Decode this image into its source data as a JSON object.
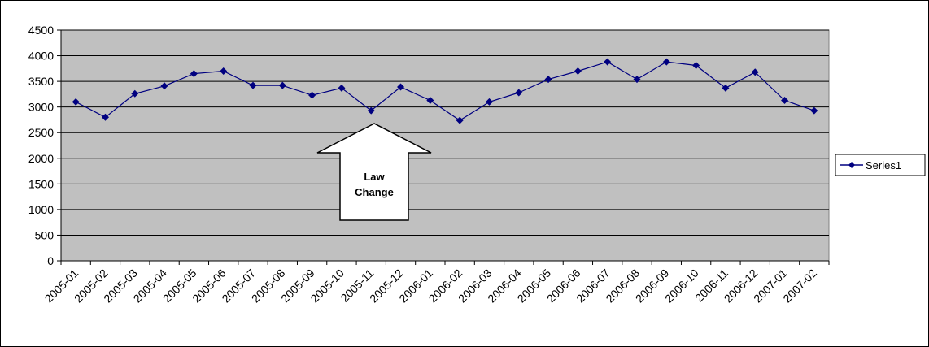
{
  "chart_data": {
    "type": "line",
    "categories": [
      "2005-01",
      "2005-02",
      "2005-03",
      "2005-04",
      "2005-05",
      "2005-06",
      "2005-07",
      "2005-08",
      "2005-09",
      "2005-10",
      "2005-11",
      "2005-12",
      "2006-01",
      "2006-02",
      "2006-03",
      "2006-04",
      "2006-05",
      "2006-06",
      "2006-07",
      "2006-08",
      "2006-09",
      "2006-10",
      "2006-11",
      "2006-12",
      "2007-01",
      "2007-02"
    ],
    "series": [
      {
        "name": "Series1",
        "values": [
          3100,
          2800,
          3260,
          3410,
          3650,
          3700,
          3420,
          3420,
          3230,
          3370,
          2930,
          3390,
          3130,
          2740,
          3100,
          3280,
          3540,
          3700,
          3880,
          3540,
          3880,
          3810,
          3370,
          3680,
          3130,
          2930
        ],
        "color": "#000080",
        "marker": "diamond"
      }
    ],
    "ylim": [
      0,
      4500
    ],
    "yticks": [
      "0",
      "500",
      "1000",
      "1500",
      "2000",
      "2500",
      "3000",
      "3500",
      "4000",
      "4500"
    ],
    "grid": true,
    "plot_background": "#c0c0c0",
    "legend": "right",
    "annotations": [
      {
        "text": [
          "Law",
          "Change"
        ],
        "shape": "up-arrow",
        "points_to": "2005-11"
      }
    ]
  }
}
